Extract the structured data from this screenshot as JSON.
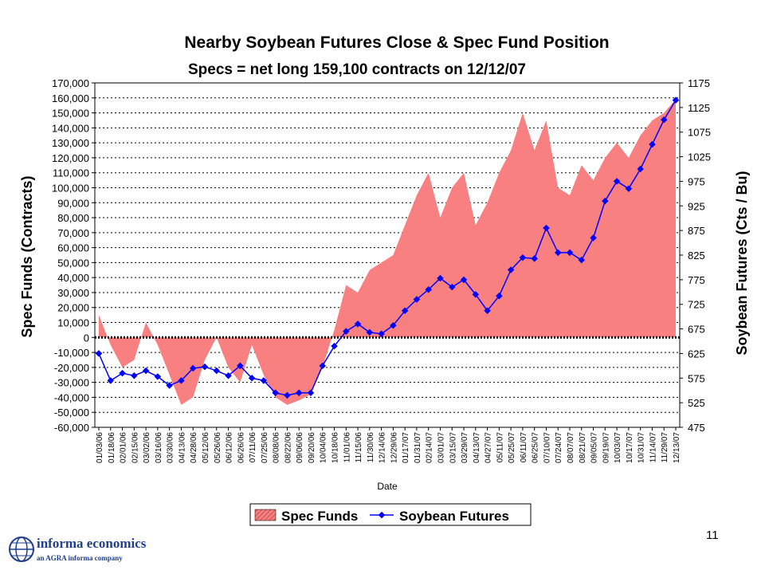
{
  "chart_data": {
    "type": "area+line",
    "title": "Nearby Soybean Futures Close & Spec Fund Position",
    "subtitle": "Specs = net long 159,100 contracts on 12/12/07",
    "xlabel": "Date",
    "ylabel_left": "Spec Funds (Contracts)",
    "ylabel_right": "Soybean Futures (Cts / Bu)",
    "ylim_left": [
      -60000,
      170000
    ],
    "ylim_right": [
      475,
      1175
    ],
    "yticks_left": [
      170000,
      160000,
      150000,
      140000,
      130000,
      120000,
      110000,
      100000,
      90000,
      80000,
      70000,
      60000,
      50000,
      40000,
      30000,
      20000,
      10000,
      0,
      -10000,
      -20000,
      -30000,
      -40000,
      -50000,
      -60000
    ],
    "yticks_left_labels": [
      "170,000",
      "160,000",
      "150,000",
      "140,000",
      "130,000",
      "120,000",
      "110,000",
      "100,000",
      "90,000",
      "80,000",
      "70,000",
      "60,000",
      "50,000",
      "40,000",
      "30,000",
      "20,000",
      "10,000",
      "0",
      "-10,000",
      "-20,000",
      "-30,000",
      "-40,000",
      "-50,000",
      "-60,000"
    ],
    "yticks_right": [
      1175,
      1125,
      1075,
      1025,
      975,
      925,
      875,
      825,
      775,
      725,
      675,
      625,
      575,
      525,
      475
    ],
    "grid": "horizontal dotted",
    "legend_position": "bottom",
    "x": [
      "01/03/06",
      "01/18/06",
      "02/01/06",
      "02/15/06",
      "03/02/06",
      "03/16/06",
      "03/30/06",
      "04/13/06",
      "04/28/06",
      "05/12/06",
      "05/26/06",
      "06/12/06",
      "06/26/06",
      "07/11/06",
      "07/25/06",
      "08/08/06",
      "08/22/06",
      "09/06/06",
      "09/20/06",
      "10/04/06",
      "10/18/06",
      "11/01/06",
      "11/15/06",
      "11/30/06",
      "12/14/06",
      "12/29/06",
      "01/17/07",
      "01/31/07",
      "02/14/07",
      "03/01/07",
      "03/15/07",
      "03/29/07",
      "04/13/07",
      "04/27/07",
      "05/11/07",
      "05/25/07",
      "06/11/07",
      "06/25/07",
      "07/10/07",
      "07/24/07",
      "08/07/07",
      "08/21/07",
      "09/05/07",
      "09/19/07",
      "10/03/07",
      "10/17/07",
      "10/31/07",
      "11/14/07",
      "11/29/07",
      "12/13/07"
    ],
    "series": [
      {
        "name": "Spec Funds",
        "type": "area",
        "axis": "left",
        "color": "#f98080",
        "values": [
          15000,
          -5000,
          -20000,
          -15000,
          10000,
          -5000,
          -25000,
          -45000,
          -40000,
          -15000,
          0,
          -20000,
          -30000,
          -5000,
          -25000,
          -40000,
          -45000,
          -42000,
          -38000,
          -20000,
          5000,
          35000,
          30000,
          45000,
          50000,
          55000,
          75000,
          95000,
          110000,
          80000,
          100000,
          110000,
          75000,
          90000,
          110000,
          125000,
          150000,
          125000,
          145000,
          100000,
          95000,
          115000,
          105000,
          120000,
          130000,
          120000,
          135000,
          145000,
          150000,
          159100
        ]
      },
      {
        "name": "Soybean Futures",
        "type": "line",
        "axis": "right",
        "color": "#0000ff",
        "values": [
          625,
          570,
          585,
          580,
          590,
          578,
          560,
          570,
          595,
          598,
          590,
          580,
          600,
          575,
          570,
          545,
          540,
          545,
          545,
          600,
          640,
          670,
          685,
          668,
          665,
          682,
          712,
          735,
          755,
          778,
          760,
          775,
          745,
          712,
          742,
          795,
          820,
          818,
          880,
          830,
          830,
          815,
          860,
          935,
          975,
          960,
          1000,
          1050,
          1100,
          1140
        ]
      }
    ]
  },
  "legend": {
    "items": [
      {
        "label": "Spec Funds"
      },
      {
        "label": "Soybean Futures"
      }
    ]
  },
  "footer": {
    "logo_name": "informa economics",
    "logo_sub": "an AGRA informa company",
    "page_number": "11"
  }
}
